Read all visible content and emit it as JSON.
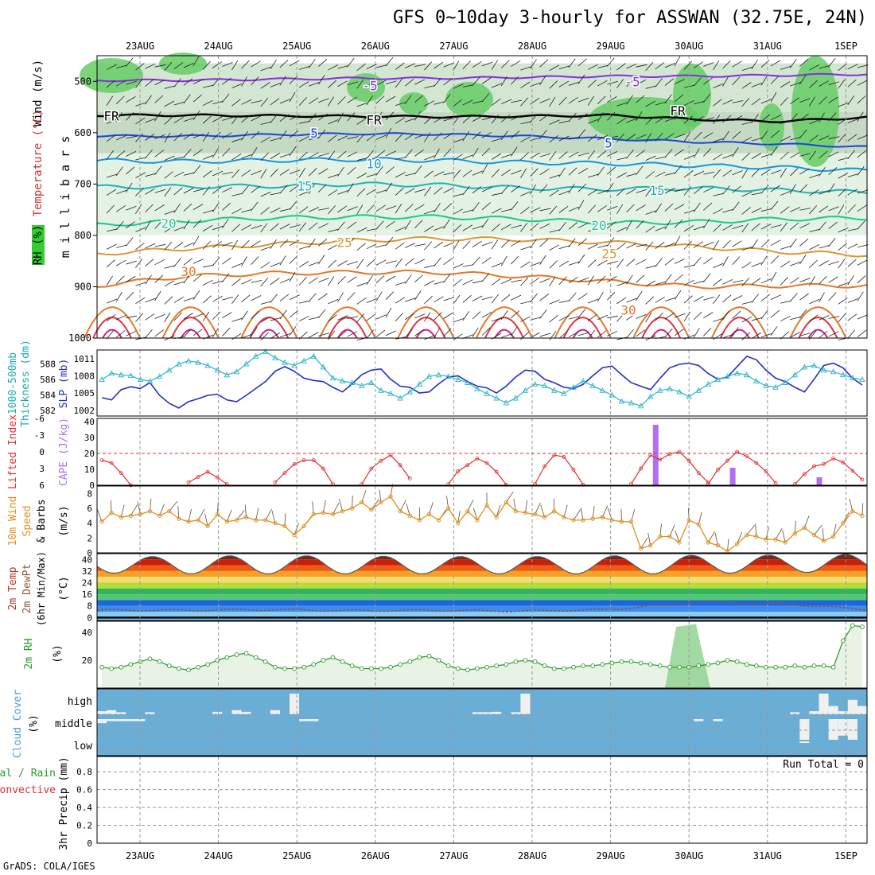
{
  "header": {
    "title": "GFS 0~10day 3-hourly for ASSWAN (32.75E, 24N)",
    "credit": "GrADS: COLA/IGES"
  },
  "time_axis": {
    "day_labels": [
      "23AUG",
      "24AUG",
      "25AUG",
      "26AUG",
      "27AUG",
      "28AUG",
      "29AUG",
      "30AUG",
      "31AUG",
      "1SEP"
    ],
    "steps": 80
  },
  "chart_data": [
    {
      "type": "area",
      "name": "upper-air-cross-section",
      "ylabel": "m i l l i b a r s",
      "left_labels": [
        "Wind (m/s)",
        "Temperature (°C)",
        "RH (%)"
      ],
      "yticks": [
        500,
        600,
        700,
        800,
        900,
        1000
      ],
      "ylim": [
        450,
        1000
      ],
      "temperature_contours": [
        {
          "label": "-5",
          "levels_mb": [
            498,
            498,
            496,
            494,
            494,
            492,
            490,
            490,
            488,
            486
          ],
          "color": "#8a2be2"
        },
        {
          "label": "FR",
          "levels_mb": [
            566,
            566,
            567,
            568,
            569,
            568,
            566,
            574,
            578,
            570
          ],
          "color": "#000000"
        },
        {
          "label": "5",
          "levels_mb": [
            606,
            607,
            604,
            602,
            603,
            607,
            612,
            618,
            622,
            628
          ],
          "color": "#1846d8"
        },
        {
          "label": "10",
          "levels_mb": [
            654,
            656,
            654,
            652,
            654,
            658,
            660,
            664,
            668,
            674
          ],
          "color": "#1496e0"
        },
        {
          "label": "15",
          "levels_mb": [
            706,
            705,
            704,
            700,
            702,
            708,
            710,
            708,
            712,
            716
          ],
          "color": "#1eb4b4"
        },
        {
          "label": "20",
          "levels_mb": [
            780,
            772,
            766,
            764,
            764,
            768,
            776,
            774,
            768,
            766
          ],
          "color": "#1ec88c"
        },
        {
          "label": "25",
          "levels_mb": [
            836,
            826,
            818,
            810,
            806,
            808,
            814,
            822,
            832,
            838
          ],
          "color": "#dc9632"
        },
        {
          "label": "30",
          "levels_mb": [
            898,
            880,
            874,
            872,
            872,
            880,
            890,
            900,
            898,
            898
          ],
          "color": "#e07828"
        }
      ],
      "contour_labels_shown": [
        "-5",
        "-5",
        "-5",
        "FR",
        "FR",
        "FR",
        "5",
        "5",
        "10",
        "10",
        "15",
        "15",
        "20",
        "20",
        "25",
        "25",
        "30",
        "30"
      ]
    },
    {
      "type": "line",
      "name": "slp-thickness",
      "left_labels": [
        "1000-500mb",
        "Thickness (dm)",
        "SLP (mb)"
      ],
      "series": [
        {
          "name": "SLP (mb)",
          "color": "#2030c8",
          "values": [
            1004.2,
            1003.8,
            1005.6,
            1006.1,
            1005.8,
            1006.8,
            1004.6,
            1003.2,
            1002.4,
            1003.5,
            1004.0,
            1004.6,
            1004.8,
            1003.8,
            1003.5,
            1004.6,
            1005.8,
            1007.0,
            1008.8,
            1009.6,
            1008.8,
            1007.6,
            1007.2,
            1007.0,
            1006.0,
            1005.2,
            1006.6,
            1008.2,
            1009.0,
            1009.2,
            1007.4,
            1006.2,
            1006.0,
            1005.0,
            1005.2,
            1006.6,
            1007.8,
            1008.0,
            1007.0,
            1006.2,
            1005.9,
            1005.0,
            1006.2,
            1007.8,
            1009.0,
            1008.8,
            1007.4,
            1006.8,
            1006.0,
            1005.8,
            1006.5,
            1008.0,
            1009.4,
            1009.7,
            1008.2,
            1006.8,
            1006.2,
            1005.6,
            1007.6,
            1009.4,
            1010.0,
            1010.2,
            1009.8,
            1008.4,
            1007.4,
            1007.8,
            1009.6,
            1011.4,
            1010.8,
            1009.0,
            1007.6,
            1007.0,
            1006.0,
            1005.2,
            1007.4,
            1009.8,
            1010.2,
            1009.4,
            1007.6,
            1006.4
          ]
        },
        {
          "name": "1000-500mb Thickness (dm)",
          "color": "#30b4c8",
          "values": [
            586.0,
            586.8,
            586.6,
            586.5,
            586.0,
            585.8,
            586.4,
            587.2,
            588.0,
            588.4,
            588.2,
            587.8,
            587.2,
            586.6,
            587.0,
            588.0,
            589.0,
            589.6,
            588.8,
            588.2,
            587.8,
            588.4,
            589.0,
            587.6,
            586.2,
            585.8,
            585.6,
            585.2,
            585.6,
            584.6,
            584.2,
            583.6,
            584.4,
            585.4,
            586.4,
            586.6,
            586.4,
            586.0,
            585.6,
            584.8,
            584.2,
            583.6,
            583.0,
            583.6,
            584.6,
            585.4,
            585.2,
            584.6,
            584.2,
            585.0,
            585.8,
            585.2,
            584.6,
            584.0,
            583.2,
            583.0,
            582.6,
            583.8,
            584.6,
            584.8,
            584.4,
            583.8,
            584.6,
            585.4,
            586.0,
            586.4,
            586.8,
            586.6,
            585.8,
            585.2,
            585.0,
            585.6,
            586.6,
            587.6,
            587.8,
            587.2,
            587.0,
            586.6,
            586.2,
            586.0
          ]
        }
      ],
      "yticks_slp": [
        1002,
        1005,
        1008,
        1011
      ],
      "yticks_thickness": [
        582,
        584,
        586,
        588
      ]
    },
    {
      "type": "bar",
      "name": "cape-lifted-index",
      "left_labels": [
        "Lifted Index",
        "CAPE (J/kg)"
      ],
      "yticks_li": [
        -6,
        -3,
        0,
        3,
        6
      ],
      "yticks_cape": [
        0,
        10,
        20,
        30,
        40
      ],
      "cape_ref_line": 20,
      "cape_bars": [
        {
          "step": 58,
          "value": 38
        },
        {
          "step": 66,
          "value": 11
        },
        {
          "step": 75,
          "value": 5
        }
      ],
      "lifted_index": [
        {
          "start": 0,
          "values": [
            1.5,
            2.0,
            3.8,
            6.0
          ]
        },
        {
          "start": 9,
          "values": [
            5.5,
            4.5,
            3.6,
            4.6,
            5.8
          ]
        },
        {
          "start": 18,
          "values": [
            5.5,
            3.8,
            2.2,
            1.5,
            1.5,
            3.0,
            5.8
          ]
        },
        {
          "start": 27,
          "values": [
            5.8,
            3.0,
            1.6,
            0.6,
            2.4,
            4.8
          ]
        },
        {
          "start": 36,
          "values": [
            5.8,
            3.5,
            2.4,
            1.2,
            2.0,
            3.6,
            5.9
          ]
        },
        {
          "start": 45,
          "values": [
            5.8,
            2.6,
            0.6,
            0.9,
            3.2,
            5.9
          ]
        },
        {
          "start": 55,
          "values": [
            5.8,
            3.0,
            0.6,
            1.4,
            0.4,
            0.0,
            1.6,
            3.8,
            5.5
          ]
        },
        {
          "start": 63,
          "values": [
            5.8,
            3.2,
            1.6,
            0.0,
            0.8,
            2.0,
            3.5,
            5.6
          ]
        },
        {
          "start": 72,
          "values": [
            5.8,
            4.0,
            2.6,
            2.2,
            1.2,
            1.9,
            3.4,
            5.0
          ]
        }
      ]
    },
    {
      "type": "line",
      "name": "wind-10m",
      "left_labels": [
        "10m Wind",
        "Speed",
        "& Barbs",
        "(m/s)"
      ],
      "yticks": [
        0,
        2,
        4,
        6,
        8
      ],
      "values": [
        4.2,
        5.4,
        4.8,
        5.0,
        5.2,
        5.6,
        5.0,
        5.6,
        4.6,
        4.2,
        4.4,
        3.6,
        5.2,
        4.2,
        4.4,
        4.8,
        4.4,
        4.4,
        4.0,
        3.6,
        2.4,
        3.6,
        5.2,
        5.4,
        5.2,
        5.6,
        6.0,
        6.8,
        5.8,
        6.8,
        7.6,
        5.6,
        5.0,
        4.4,
        5.2,
        4.4,
        6.0,
        4.0,
        5.6,
        4.4,
        6.4,
        4.8,
        6.8,
        5.6,
        5.4,
        5.2,
        4.8,
        5.6,
        4.8,
        4.4,
        4.4,
        4.6,
        4.8,
        4.4,
        4.2,
        4.2,
        0.6,
        1.0,
        2.2,
        2.2,
        1.4,
        4.4,
        3.8,
        1.4,
        1.0,
        0.2,
        1.2,
        2.4,
        2.2,
        1.8,
        1.8,
        1.4,
        2.6,
        3.4,
        2.4,
        1.6,
        2.2,
        4.0,
        5.6,
        5.0
      ]
    },
    {
      "type": "area",
      "name": "2m-temp-dewpoint",
      "left_labels": [
        "2m Temp",
        "2m DewPt",
        "(6hr Min/Max)",
        "(°C)"
      ],
      "yticks": [
        0,
        8,
        16,
        24,
        32,
        40
      ],
      "ylim": [
        -2,
        44
      ],
      "color_bands": [
        {
          "min": 40,
          "color": "#6e2a1a"
        },
        {
          "min": 36,
          "color": "#c81e0a"
        },
        {
          "min": 32,
          "color": "#ee5a14"
        },
        {
          "min": 28,
          "color": "#f5a028"
        },
        {
          "min": 24,
          "color": "#f5dc6e"
        },
        {
          "min": 20,
          "color": "#b4dc3c"
        },
        {
          "min": 16,
          "color": "#32b45a"
        },
        {
          "min": 12,
          "color": "#50c878"
        },
        {
          "min": 8,
          "color": "#1e64dc"
        },
        {
          "min": 4,
          "color": "#3c8cf0"
        },
        {
          "min": 0,
          "color": "#8ccaf0"
        }
      ],
      "temp_daily_max": [
        42.0,
        42.5,
        42.5,
        42.2,
        42.0,
        42.0,
        42.5,
        42.8,
        43.0,
        43.5
      ],
      "temp_daily_min": [
        30.5,
        30.0,
        30.0,
        30.0,
        30.0,
        30.0,
        30.0,
        30.0,
        30.5,
        31.0
      ],
      "dewpoint": [
        5.2,
        5.0,
        5.5,
        4.8,
        5.0,
        4.5,
        5.5,
        11.0,
        9.5,
        5.5
      ]
    },
    {
      "type": "area",
      "name": "2m-rh",
      "left_labels": [
        "2m RH",
        "(%)"
      ],
      "yticks": [
        20,
        40
      ],
      "values": [
        15,
        14,
        15,
        17,
        19,
        21,
        19,
        16,
        14,
        13,
        15,
        17,
        20,
        22,
        24,
        25,
        22,
        19,
        15,
        14,
        14,
        15,
        17,
        20,
        22,
        19,
        16,
        14,
        14,
        14,
        15,
        17,
        19,
        22,
        23,
        20,
        16,
        14,
        13,
        14,
        15,
        16,
        17,
        19,
        20,
        19,
        16,
        14,
        14,
        15,
        16,
        16,
        17,
        18,
        19,
        19,
        18,
        17,
        16,
        15,
        15,
        15,
        16,
        17,
        18,
        20,
        19,
        17,
        16,
        15,
        15,
        15,
        16,
        15,
        16,
        16,
        15,
        34,
        45,
        44
      ]
    },
    {
      "type": "bar",
      "name": "cloud-cover",
      "left_labels": [
        "Cloud Cover",
        "(%)"
      ],
      "row_labels": [
        "high",
        "middle",
        "low"
      ],
      "background_color": "#6aaed6",
      "high": [
        {
          "step": 1,
          "value": 15
        },
        {
          "step": 2,
          "value": 20
        },
        {
          "step": 3,
          "value": 10
        },
        {
          "step": 6,
          "value": 10
        },
        {
          "step": 13,
          "value": 12
        },
        {
          "step": 15,
          "value": 20
        },
        {
          "step": 16,
          "value": 12
        },
        {
          "step": 19,
          "value": 20
        },
        {
          "step": 21,
          "value": 100
        },
        {
          "step": 40,
          "value": 10
        },
        {
          "step": 41,
          "value": 10
        },
        {
          "step": 42,
          "value": 12
        },
        {
          "step": 44,
          "value": 10
        },
        {
          "step": 45,
          "value": 100
        },
        {
          "step": 73,
          "value": 10
        },
        {
          "step": 75,
          "value": 15
        },
        {
          "step": 76,
          "value": 100
        },
        {
          "step": 77,
          "value": 40
        },
        {
          "step": 78,
          "value": 15
        },
        {
          "step": 79,
          "value": 70
        },
        {
          "step": 80,
          "value": 40
        }
      ],
      "middle": [
        {
          "step": 1,
          "value": 20
        },
        {
          "step": 2,
          "value": 10
        },
        {
          "step": 3,
          "value": 10
        },
        {
          "step": 4,
          "value": 10
        },
        {
          "step": 5,
          "value": 10
        },
        {
          "step": 22,
          "value": 10
        },
        {
          "step": 23,
          "value": 10
        },
        {
          "step": 63,
          "value": 10
        },
        {
          "step": 65,
          "value": 10
        },
        {
          "step": 74,
          "value": 100
        },
        {
          "step": 77,
          "value": 100
        },
        {
          "step": 78,
          "value": 80
        },
        {
          "step": 79,
          "value": 100
        }
      ],
      "low": [
        {
          "step": 74,
          "value": 10
        }
      ]
    },
    {
      "type": "bar",
      "name": "precip-3hr",
      "left_labels": [
        "Total / Rain",
        "Convective",
        "3hr Precip (mm)"
      ],
      "yticks": [
        0,
        0.2,
        0.4,
        0.6,
        0.8
      ],
      "run_total_label": "Run Total = 0",
      "values": []
    }
  ]
}
